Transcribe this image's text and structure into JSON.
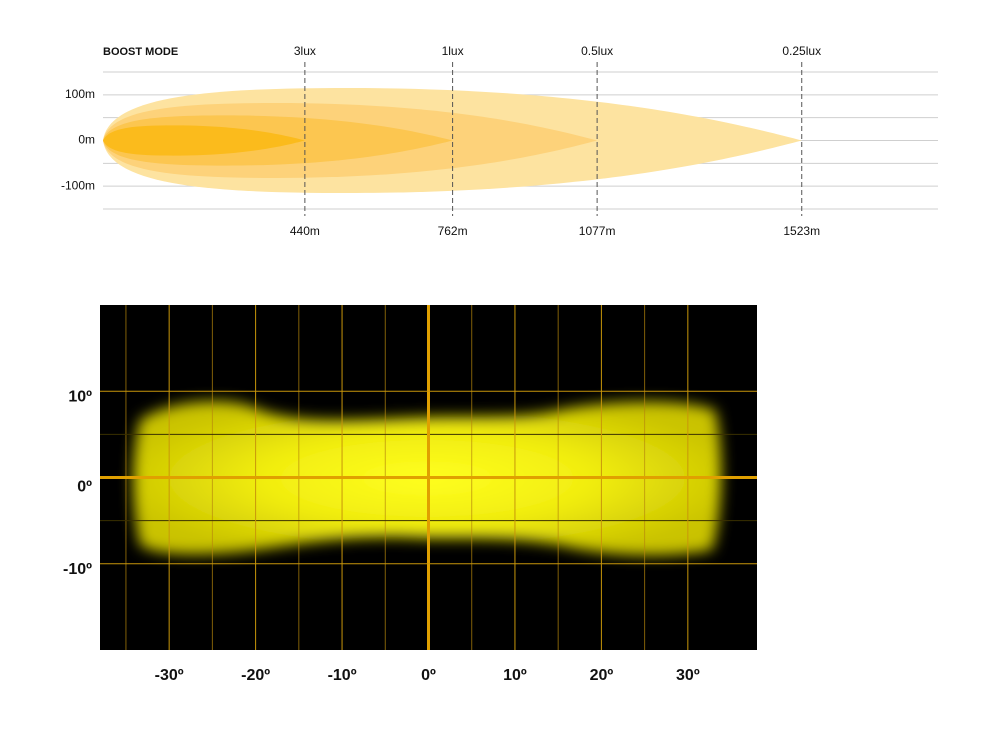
{
  "chart_data": [
    {
      "type": "beam-range",
      "title": "BOOST MODE",
      "xlim": [
        0,
        1820
      ],
      "ylim": [
        -150,
        150
      ],
      "yticks": [
        {
          "value": 100,
          "label": "100m"
        },
        {
          "value": 0,
          "label": "0m"
        },
        {
          "value": -100,
          "label": "-100m"
        }
      ],
      "ygrid": [
        -150,
        -100,
        -50,
        0,
        50,
        100,
        150
      ],
      "series": [
        {
          "name": "0.25lux",
          "color": "#fde3a0",
          "distance": 1523,
          "distance_label": "1523m",
          "half_width": 115
        },
        {
          "name": "0.5lux",
          "color": "#fdd27a",
          "distance": 1077,
          "distance_label": "1077m",
          "half_width": 82
        },
        {
          "name": "1lux",
          "color": "#fcc650",
          "distance": 762,
          "distance_label": "762m",
          "half_width": 55
        },
        {
          "name": "3lux",
          "color": "#fbbb1c",
          "distance": 440,
          "distance_label": "440m",
          "half_width": 33
        }
      ]
    },
    {
      "type": "beam-pattern",
      "xlim": [
        -38,
        38
      ],
      "ylim": [
        -20,
        20
      ],
      "xticks": [
        {
          "value": -30,
          "label": "-30º"
        },
        {
          "value": -20,
          "label": "-20º"
        },
        {
          "value": -10,
          "label": "-10º"
        },
        {
          "value": 0,
          "label": "0º"
        },
        {
          "value": 10,
          "label": "10º"
        },
        {
          "value": 20,
          "label": "20º"
        },
        {
          "value": 30,
          "label": "30º"
        }
      ],
      "yticks": [
        {
          "value": 10,
          "label": "10º"
        },
        {
          "value": 0,
          "label": "0º"
        },
        {
          "value": -10,
          "label": "-10º"
        }
      ],
      "xgrid": [
        -35,
        -25,
        -15,
        -5,
        5,
        15,
        25
      ],
      "ygrid": [
        -5,
        5
      ]
    }
  ]
}
